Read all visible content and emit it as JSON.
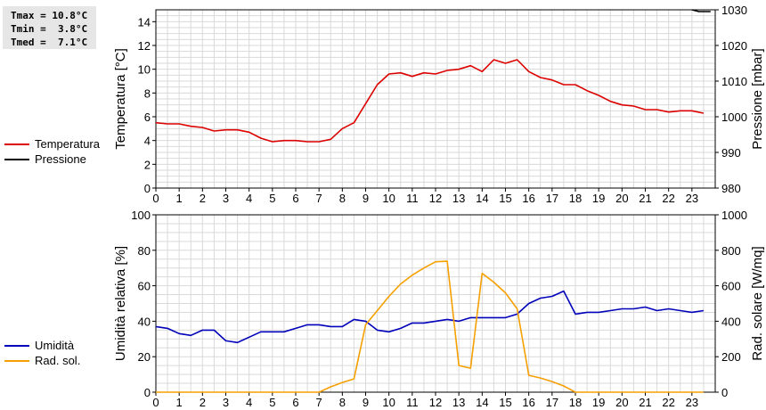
{
  "stats": {
    "tmax": "Tmax = 10.8°C",
    "tmin": "Tmin =  3.8°C",
    "tmed": "Tmed =  7.1°C"
  },
  "colors": {
    "temperature": "#dd0000",
    "pressure": "#000000",
    "humidity": "#0000bb",
    "radiation": "#f5a000",
    "grid": "#d9d9d9"
  },
  "legend_top": [
    "Temperatura",
    "Pressione"
  ],
  "legend_bottom": [
    "Umidità",
    "Rad. sol."
  ],
  "chart_data": [
    {
      "type": "line",
      "ylabel": "Temperatura [°C]",
      "y2label": "Pressione [mbar]",
      "ylim": [
        0,
        15
      ],
      "yticks": [
        0,
        2,
        4,
        6,
        8,
        10,
        12,
        14
      ],
      "y2lim": [
        980,
        1030
      ],
      "y2ticks": [
        980,
        990,
        1000,
        1010,
        1020,
        1030
      ],
      "xlim": [
        0,
        24
      ],
      "xticks": [
        0,
        1,
        2,
        3,
        4,
        5,
        6,
        7,
        8,
        9,
        10,
        11,
        12,
        13,
        14,
        15,
        16,
        17,
        18,
        19,
        20,
        21,
        22,
        23
      ],
      "grid": true,
      "series": [
        {
          "name": "Temperatura",
          "axis": "left",
          "x": [
            0,
            0.5,
            1,
            1.5,
            2,
            2.5,
            3,
            3.5,
            4,
            4.5,
            5,
            5.5,
            6,
            6.5,
            7,
            7.5,
            8,
            8.5,
            9,
            9.5,
            10,
            10.5,
            11,
            11.5,
            12,
            12.5,
            13,
            13.5,
            14,
            14.5,
            15,
            15.5,
            16,
            16.5,
            17,
            17.5,
            18,
            18.5,
            19,
            19.5,
            20,
            20.5,
            21,
            21.5,
            22,
            22.5,
            23,
            23.5
          ],
          "y": [
            5.5,
            5.4,
            5.4,
            5.2,
            5.1,
            4.8,
            4.9,
            4.9,
            4.7,
            4.2,
            3.9,
            4.0,
            4.0,
            3.9,
            3.9,
            4.1,
            5.0,
            5.5,
            7.1,
            8.7,
            9.6,
            9.7,
            9.4,
            9.7,
            9.6,
            9.9,
            10.0,
            10.3,
            9.8,
            10.8,
            10.5,
            10.8,
            9.8,
            9.3,
            9.1,
            8.7,
            8.7,
            8.2,
            7.8,
            7.3,
            7.0,
            6.9,
            6.6,
            6.6,
            6.4,
            6.5,
            6.5,
            6.3
          ]
        },
        {
          "name": "Pressione",
          "axis": "right",
          "x": [
            23.0,
            23.3,
            23.8
          ],
          "y": [
            1030.5,
            1029.5,
            1029.5
          ]
        }
      ]
    },
    {
      "type": "line",
      "ylabel": "Umidità relativa [%]",
      "y2label": "Rad. solare [W/mq]",
      "ylim": [
        0,
        100
      ],
      "yticks": [
        0,
        20,
        40,
        60,
        80,
        100
      ],
      "y2lim": [
        0,
        1000
      ],
      "y2ticks": [
        0,
        200,
        400,
        600,
        800,
        1000
      ],
      "xlim": [
        0,
        24
      ],
      "xticks": [
        0,
        1,
        2,
        3,
        4,
        5,
        6,
        7,
        8,
        9,
        10,
        11,
        12,
        13,
        14,
        15,
        16,
        17,
        18,
        19,
        20,
        21,
        22,
        23
      ],
      "grid": true,
      "series": [
        {
          "name": "Umidità",
          "axis": "left",
          "x": [
            0,
            0.5,
            1,
            1.5,
            2,
            2.5,
            3,
            3.5,
            4,
            4.5,
            5,
            5.5,
            6,
            6.5,
            7,
            7.5,
            8,
            8.5,
            9,
            9.5,
            10,
            10.5,
            11,
            11.5,
            12,
            12.5,
            13,
            13.5,
            14,
            14.5,
            15,
            15.5,
            16,
            16.5,
            17,
            17.5,
            18,
            18.5,
            19,
            19.5,
            20,
            20.5,
            21,
            21.5,
            22,
            22.5,
            23,
            23.5
          ],
          "y": [
            37,
            36,
            33,
            32,
            35,
            35,
            29,
            28,
            31,
            34,
            34,
            34,
            36,
            38,
            38,
            37,
            37,
            41,
            40,
            35,
            34,
            36,
            39,
            39,
            40,
            41,
            40,
            42,
            42,
            42,
            42,
            44,
            50,
            53,
            54,
            57,
            44,
            45,
            45,
            46,
            47,
            47,
            48,
            46,
            47,
            46,
            45,
            46
          ]
        },
        {
          "name": "Rad. sol.",
          "axis": "right",
          "x": [
            0,
            1,
            2,
            3,
            4,
            5,
            6,
            7,
            7.5,
            8,
            8.5,
            9,
            9.5,
            10,
            10.5,
            11,
            11.5,
            12,
            12.5,
            13,
            13.5,
            14,
            14.5,
            15,
            15.5,
            16,
            16.5,
            17,
            17.5,
            18,
            19,
            20,
            21,
            22,
            23,
            23.5
          ],
          "y": [
            0,
            0,
            0,
            0,
            0,
            0,
            0,
            0,
            30,
            55,
            75,
            380,
            460,
            540,
            610,
            660,
            700,
            735,
            738,
            150,
            135,
            670,
            620,
            560,
            470,
            95,
            80,
            60,
            35,
            0,
            0,
            0,
            0,
            0,
            0,
            0
          ]
        }
      ]
    }
  ]
}
